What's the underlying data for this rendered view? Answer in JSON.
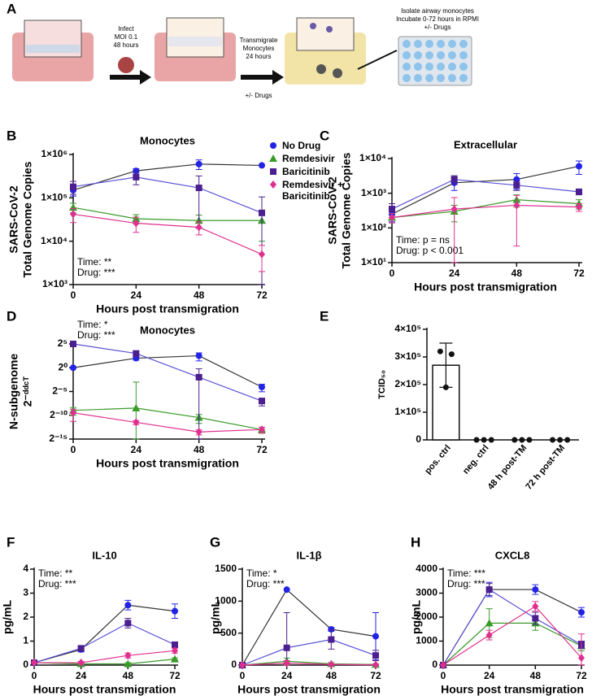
{
  "panel_labels": [
    "A",
    "B",
    "C",
    "D",
    "E",
    "F",
    "G",
    "H"
  ],
  "diagram": {
    "infect_label": [
      "Infect",
      "MOI 0.1",
      "48 hours"
    ],
    "transmigrate_label": [
      "Transmigrate",
      "Monocytes",
      "24 hours"
    ],
    "drugs_label": "+/- Drugs",
    "isolate_label": [
      "Isolate airway monocytes",
      "Incubate 0-72 hours in RPMI",
      "+/- Drugs"
    ]
  },
  "chart_data": [
    {
      "type": "line",
      "title": "Monocytes",
      "ylabel": [
        "SARS-CoV-2",
        "Total Genome Copies"
      ],
      "xlabel": "Hours post transmigration",
      "ylog": true,
      "x": [
        0,
        24,
        48,
        72
      ],
      "xlim": [
        0,
        72
      ],
      "xticks": [
        0,
        24,
        48,
        72
      ],
      "ylim": [
        1000,
        1000000
      ],
      "yticks": [
        {
          "value": 1000,
          "label": "1×10³"
        },
        {
          "value": 10000,
          "label": "1×10⁴"
        },
        {
          "value": 100000,
          "label": "1×10⁵"
        },
        {
          "value": 1000000,
          "label": "1×10⁶"
        }
      ],
      "annotations": [
        "Time:  **",
        "Drug: ***"
      ],
      "legend": "right",
      "series": [
        {
          "name": "No Drug",
          "color": "#2323e8",
          "line_color": "#333333",
          "marker": "circle",
          "values": [
            150000,
            420000,
            600000,
            560000
          ],
          "errors": [
            40000,
            50000,
            150000,
            0
          ]
        },
        {
          "name": "Remdesivir",
          "color": "#3a9a2a",
          "line_color": "#3a9a2a",
          "marker": "triangle",
          "values": [
            60000,
            33000,
            30000,
            30000
          ],
          "errors": [
            15000,
            8000,
            10000,
            20000
          ]
        },
        {
          "name": "Baricitinib",
          "color": "#4b1f8f",
          "line_color": "#5a52d6",
          "marker": "square",
          "values": [
            180000,
            300000,
            170000,
            45000
          ],
          "errors": [
            60000,
            100000,
            150000,
            60000
          ]
        },
        {
          "name": "Remdesivir + Baricitinib",
          "color": "#e0308f",
          "line_color": "#e0308f",
          "marker": "diamond",
          "values": [
            42000,
            26000,
            21000,
            5000
          ],
          "errors": [
            15000,
            10000,
            7000,
            3000
          ]
        }
      ]
    },
    {
      "type": "line",
      "title": "Extracellular",
      "ylabel": [
        "SARS-CoV-2",
        "Total Genome Copies"
      ],
      "xlabel": "Hours post transmigration",
      "ylog": true,
      "x": [
        0,
        24,
        48,
        72
      ],
      "xlim": [
        0,
        72
      ],
      "xticks": [
        0,
        24,
        48,
        72
      ],
      "ylim": [
        10,
        10000
      ],
      "yticks": [
        {
          "value": 10,
          "label": "1×10¹"
        },
        {
          "value": 100,
          "label": "1×10²"
        },
        {
          "value": 1000,
          "label": "1×10³"
        },
        {
          "value": 10000,
          "label": "1×10⁴"
        }
      ],
      "annotations": [
        "Time: p = ns",
        "Drug: p < 0.001"
      ],
      "series": [
        {
          "color": "#2323e8",
          "line_color": "#333333",
          "marker": "circle",
          "values": [
            250,
            2000,
            2500,
            6000
          ],
          "errors": [
            100,
            800,
            1200,
            2500
          ]
        },
        {
          "color": "#3a9a2a",
          "line_color": "#3a9a2a",
          "marker": "triangle",
          "values": [
            200,
            300,
            650,
            500
          ],
          "errors": [
            60,
            150,
            250,
            150
          ]
        },
        {
          "color": "#4b1f8f",
          "line_color": "#5a52d6",
          "marker": "square",
          "values": [
            350,
            2500,
            1700,
            1100
          ],
          "errors": [
            150,
            700,
            500,
            200
          ]
        },
        {
          "color": "#e0308f",
          "line_color": "#e0308f",
          "marker": "diamond",
          "values": [
            200,
            350,
            450,
            400
          ],
          "errors": [
            60,
            400,
            420,
            100
          ]
        }
      ]
    },
    {
      "type": "line",
      "title": "Monocytes",
      "ylabel": [
        "N-subgenome",
        "2⁻ᵈᵈᶜᵀ"
      ],
      "xlabel": "Hours post transmigration",
      "ylog": true,
      "x": [
        0,
        24,
        48,
        72
      ],
      "xlim": [
        0,
        72
      ],
      "xticks": [
        0,
        24,
        48,
        72
      ],
      "ylim": [
        3.0517578125e-05,
        32
      ],
      "yticks": [
        {
          "value": 3.0517578125e-05,
          "label": "2⁻¹⁵"
        },
        {
          "value": 0.0009765625,
          "label": "2⁻¹⁰"
        },
        {
          "value": 0.03125,
          "label": "2⁻⁵"
        },
        {
          "value": 1,
          "label": "2⁰"
        },
        {
          "value": 32,
          "label": "2⁵"
        }
      ],
      "annotations": [
        "Time: *",
        "Drug: ***"
      ],
      "series": [
        {
          "color": "#2323e8",
          "line_color": "#333333",
          "marker": "circle",
          "values": [
            1,
            4,
            5.7,
            0.06
          ],
          "errors": [
            0,
            1,
            3,
            0.03
          ]
        },
        {
          "color": "#3a9a2a",
          "line_color": "#3a9a2a",
          "marker": "triangle",
          "values": [
            0.002,
            0.0028,
            0.0007,
            0.000122
          ],
          "errors": [
            0.001,
            0.12,
            0.0004,
            5e-05
          ]
        },
        {
          "color": "#4b1f8f",
          "line_color": "#5a52d6",
          "marker": "square",
          "values": [
            32,
            8,
            0.25,
            0.0078
          ],
          "errors": [
            10,
            3,
            0.6,
            0.004
          ]
        },
        {
          "color": "#e0308f",
          "line_color": "#e0308f",
          "marker": "diamond",
          "values": [
            0.0014,
            0.00035,
            8.6e-05,
            0.000122
          ],
          "errors": [
            0.001,
            0.0001,
            3e-05,
            5e-05
          ]
        }
      ]
    },
    {
      "type": "bar",
      "ylabel": [
        "TCID₅₀"
      ],
      "categories": [
        "pos. ctrl",
        "neg. ctrl",
        "48 h post-TM",
        "72 h post-TM"
      ],
      "values": [
        270000,
        0,
        0,
        0
      ],
      "errors": [
        80000,
        0,
        0,
        0
      ],
      "points": [
        [
          320000,
          310000,
          190000
        ],
        [
          0,
          0,
          0
        ],
        [
          0,
          0,
          0
        ],
        [
          0,
          0,
          0
        ]
      ],
      "ylim": [
        0,
        400000
      ],
      "yticks": [
        0,
        {
          "value": 100000,
          "label": "1×10⁵"
        },
        {
          "value": 200000,
          "label": "2×10⁵"
        },
        {
          "value": 300000,
          "label": "3×10⁵"
        },
        {
          "value": 400000,
          "label": "4×10⁵"
        }
      ],
      "color": "#ffffff"
    },
    {
      "type": "line",
      "title": "IL-10",
      "ylabel": [
        "pg/mL"
      ],
      "xlabel": "Hours post transmigration",
      "x": [
        0,
        24,
        48,
        72
      ],
      "xlim": [
        0,
        72
      ],
      "xticks": [
        0,
        24,
        48,
        72
      ],
      "ylim": [
        0,
        4
      ],
      "yticks": [
        0,
        1,
        2,
        3,
        4
      ],
      "annotations": [
        "Time: **",
        "Drug: ***"
      ],
      "series": [
        {
          "color": "#2323e8",
          "line_color": "#333333",
          "marker": "circle",
          "values": [
            0.1,
            0.65,
            2.5,
            2.25
          ],
          "errors": [
            0,
            0.1,
            0.2,
            0.3
          ]
        },
        {
          "color": "#3a9a2a",
          "line_color": "#3a9a2a",
          "marker": "triangle",
          "values": [
            0.1,
            0.05,
            0.05,
            0.25
          ],
          "errors": [
            0,
            0.05,
            0.05,
            0.05
          ]
        },
        {
          "color": "#4b1f8f",
          "line_color": "#5a52d6",
          "marker": "square",
          "values": [
            0.1,
            0.7,
            1.75,
            0.85
          ],
          "errors": [
            0,
            0.1,
            0.2,
            0.1
          ]
        },
        {
          "color": "#e0308f",
          "line_color": "#e0308f",
          "marker": "diamond",
          "values": [
            0.1,
            0.1,
            0.4,
            0.6
          ],
          "errors": [
            0,
            0.05,
            0.1,
            0.1
          ]
        }
      ]
    },
    {
      "type": "line",
      "title": "IL-1β",
      "ylabel": [
        "pg/mL"
      ],
      "xlabel": "Hours post transmigration",
      "x": [
        0,
        24,
        48,
        72
      ],
      "xlim": [
        0,
        72
      ],
      "xticks": [
        0,
        24,
        48,
        72
      ],
      "ylim": [
        0,
        1500
      ],
      "yticks": [
        0,
        500,
        1000,
        1500
      ],
      "annotations": [
        "Time: *",
        "Drug: ***"
      ],
      "series": [
        {
          "color": "#2323e8",
          "line_color": "#333333",
          "marker": "circle",
          "values": [
            0,
            1180,
            560,
            450
          ],
          "errors": [
            0,
            0,
            30,
            370
          ]
        },
        {
          "color": "#3a9a2a",
          "line_color": "#3a9a2a",
          "marker": "triangle",
          "values": [
            0,
            60,
            20,
            10
          ],
          "errors": [
            0,
            50,
            20,
            10
          ]
        },
        {
          "color": "#4b1f8f",
          "line_color": "#5a52d6",
          "marker": "square",
          "values": [
            0,
            270,
            400,
            150
          ],
          "errors": [
            0,
            550,
            150,
            80
          ]
        },
        {
          "color": "#e0308f",
          "line_color": "#e0308f",
          "marker": "diamond",
          "values": [
            0,
            30,
            10,
            5
          ],
          "errors": [
            0,
            40,
            10,
            5
          ]
        }
      ]
    },
    {
      "type": "line",
      "title": "CXCL8",
      "ylabel": [
        "pg/mL"
      ],
      "xlabel": "Hours post transmigration",
      "x": [
        0,
        24,
        48,
        72
      ],
      "xlim": [
        0,
        72
      ],
      "xticks": [
        0,
        24,
        48,
        72
      ],
      "ylim": [
        0,
        4000
      ],
      "yticks": [
        0,
        1000,
        2000,
        3000,
        4000
      ],
      "annotations": [
        "Time: ***",
        "Drug: ***"
      ],
      "series": [
        {
          "color": "#2323e8",
          "line_color": "#333333",
          "marker": "circle",
          "values": [
            0,
            3150,
            3150,
            2200
          ],
          "errors": [
            0,
            300,
            200,
            200
          ]
        },
        {
          "color": "#3a9a2a",
          "line_color": "#3a9a2a",
          "marker": "triangle",
          "values": [
            0,
            1750,
            1750,
            800
          ],
          "errors": [
            0,
            600,
            300,
            200
          ]
        },
        {
          "color": "#4b1f8f",
          "line_color": "#5a52d6",
          "marker": "square",
          "values": [
            0,
            3150,
            1950,
            850
          ],
          "errors": [
            0,
            250,
            250,
            150
          ]
        },
        {
          "color": "#e0308f",
          "line_color": "#e0308f",
          "marker": "diamond",
          "values": [
            0,
            1250,
            2450,
            300
          ],
          "errors": [
            0,
            200,
            200,
            1000
          ]
        }
      ]
    }
  ]
}
